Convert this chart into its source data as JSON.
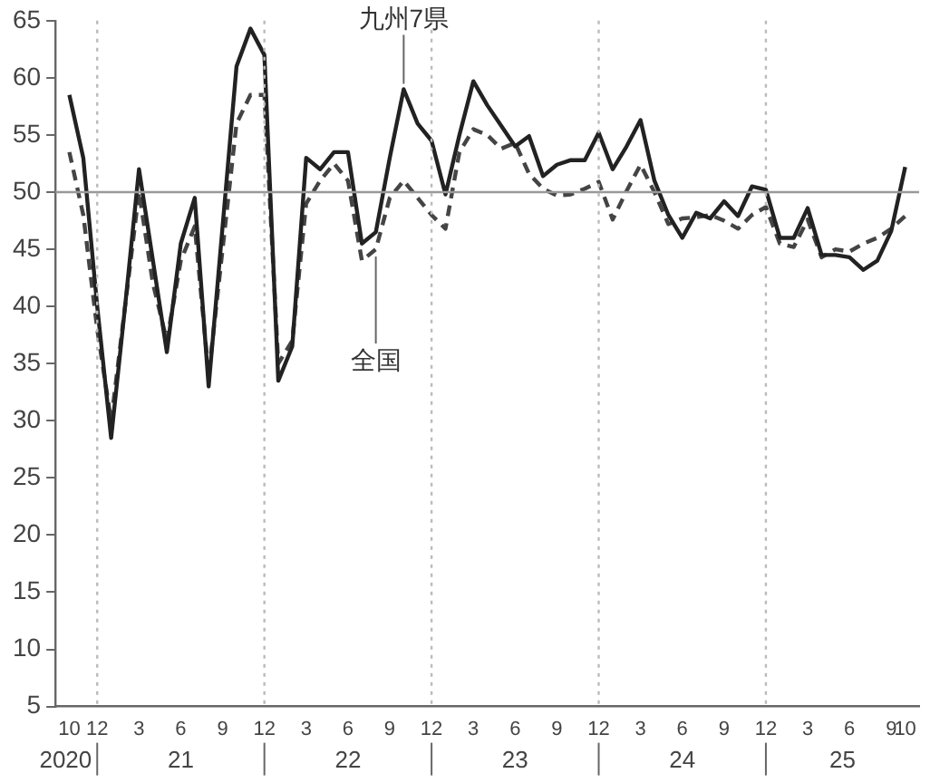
{
  "chart_data": {
    "type": "line",
    "x": [
      "2020-10",
      "2020-11",
      "2020-12",
      "2021-01",
      "2021-02",
      "2021-03",
      "2021-04",
      "2021-05",
      "2021-06",
      "2021-07",
      "2021-08",
      "2021-09",
      "2021-10",
      "2021-11",
      "2021-12",
      "2022-01",
      "2022-02",
      "2022-03",
      "2022-04",
      "2022-05",
      "2022-06",
      "2022-07",
      "2022-08",
      "2022-09",
      "2022-10",
      "2022-11",
      "2022-12",
      "2023-01",
      "2023-02",
      "2023-03",
      "2023-04",
      "2023-05",
      "2023-06",
      "2023-07",
      "2023-08",
      "2023-09",
      "2023-10",
      "2023-11",
      "2023-12",
      "2024-01",
      "2024-02",
      "2024-03",
      "2024-04",
      "2024-05",
      "2024-06",
      "2024-07",
      "2024-08",
      "2024-09",
      "2024-10",
      "2024-11",
      "2024-12",
      "2025-01",
      "2025-02",
      "2025-03",
      "2025-04",
      "2025-05",
      "2025-06",
      "2025-07",
      "2025-08",
      "2025-09",
      "2025-10"
    ],
    "series": [
      {
        "name": "九州7県",
        "color": "#222222",
        "line_style": "solid",
        "values": [
          58.5,
          53,
          40,
          28.5,
          40,
          52,
          44,
          36,
          45.5,
          49.5,
          33,
          47,
          61,
          64.3,
          62,
          33.5,
          36.5,
          53,
          52,
          53.5,
          53.5,
          45.5,
          46.5,
          53,
          59,
          56,
          54.5,
          49.8,
          55,
          59.7,
          57.6,
          55.8,
          54,
          54.9,
          51.4,
          52.4,
          52.8,
          52.8,
          55.2,
          52,
          54,
          56.3,
          51,
          48,
          46,
          48.2,
          47.7,
          49.2,
          47.9,
          50.5,
          50.2,
          46,
          46,
          48.6,
          44.5,
          44.5,
          44.3,
          43.2,
          44,
          46.6,
          52.2
        ]
      },
      {
        "name": "全国",
        "color": "#444444",
        "line_style": "dashed",
        "values": [
          53.5,
          48,
          38,
          30,
          40,
          50,
          42,
          37,
          44,
          47,
          34,
          45,
          56,
          58.5,
          58.5,
          35,
          37,
          49,
          51,
          52.5,
          51,
          44,
          45,
          49.5,
          51,
          49.5,
          48,
          46.8,
          53.5,
          55.5,
          55,
          53.8,
          54.3,
          51.6,
          50.3,
          49.7,
          49.8,
          50.3,
          50.9,
          47.6,
          50.1,
          52.4,
          50,
          47.2,
          47.7,
          47.8,
          48,
          47.5,
          46.8,
          48,
          48.7,
          45.5,
          45.2,
          47.6,
          44.3,
          45,
          44.8,
          45.5,
          46,
          46.8,
          47.9
        ]
      }
    ],
    "xlim": [
      "2020-09",
      "2025-11"
    ],
    "xticks": [
      {
        "value": "2020-10",
        "label": "10"
      },
      {
        "value": "2020-12",
        "label": "12"
      },
      {
        "value": "2021-03",
        "label": "3"
      },
      {
        "value": "2021-06",
        "label": "6"
      },
      {
        "value": "2021-09",
        "label": "9"
      },
      {
        "value": "2021-12",
        "label": "12"
      },
      {
        "value": "2022-03",
        "label": "3"
      },
      {
        "value": "2022-06",
        "label": "6"
      },
      {
        "value": "2022-09",
        "label": "9"
      },
      {
        "value": "2022-12",
        "label": "12"
      },
      {
        "value": "2023-03",
        "label": "3"
      },
      {
        "value": "2023-06",
        "label": "6"
      },
      {
        "value": "2023-09",
        "label": "9"
      },
      {
        "value": "2023-12",
        "label": "12"
      },
      {
        "value": "2024-03",
        "label": "3"
      },
      {
        "value": "2024-06",
        "label": "6"
      },
      {
        "value": "2024-09",
        "label": "9"
      },
      {
        "value": "2024-12",
        "label": "12"
      },
      {
        "value": "2025-03",
        "label": "3"
      },
      {
        "value": "2025-06",
        "label": "6"
      },
      {
        "value": "2025-09",
        "label": "9"
      },
      {
        "value": "2025-10",
        "label": "10"
      }
    ],
    "ylim": [
      5,
      65
    ],
    "yticks": [
      5,
      10,
      15,
      20,
      25,
      30,
      35,
      40,
      45,
      50,
      55,
      60,
      65
    ],
    "ref_lines": [
      {
        "axis": "y",
        "value": 50,
        "color": "#999999",
        "line_style": "solid"
      },
      {
        "axis": "x",
        "value": "2020-12",
        "color": "#bbbbbb",
        "line_style": "dotted"
      },
      {
        "axis": "x",
        "value": "2021-12",
        "color": "#bbbbbb",
        "line_style": "dotted"
      },
      {
        "axis": "x",
        "value": "2022-12",
        "color": "#bbbbbb",
        "line_style": "dotted"
      },
      {
        "axis": "x",
        "value": "2023-12",
        "color": "#bbbbbb",
        "line_style": "dotted"
      },
      {
        "axis": "x",
        "value": "2024-12",
        "color": "#bbbbbb",
        "line_style": "dotted"
      }
    ],
    "annotations": [
      "2020",
      "21",
      "22",
      "23",
      "24",
      "25"
    ],
    "grid": false,
    "legend": false,
    "marker": "none"
  }
}
